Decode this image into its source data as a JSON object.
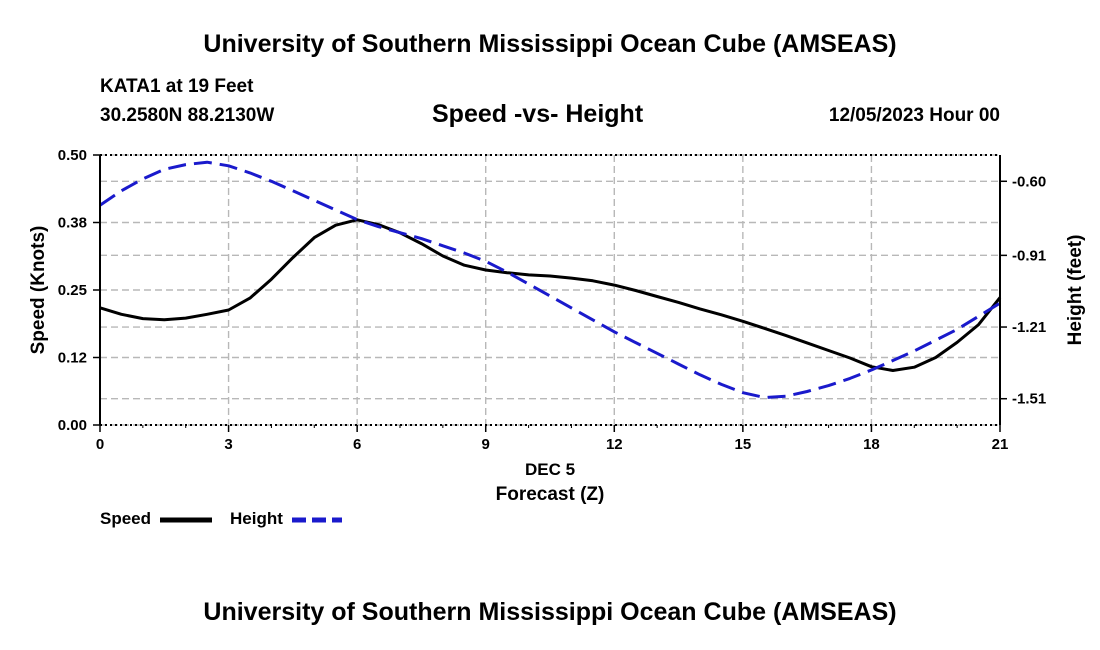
{
  "header": {
    "title": "University of Southern Mississippi Ocean Cube (AMSEAS)",
    "station": "KATA1 at 19 Feet",
    "coords": "30.2580N  88.2130W",
    "subtitle": "Speed -vs- Height",
    "datetime": "12/05/2023 Hour 00"
  },
  "footer": {
    "title": "University of Southern Mississippi Ocean Cube (AMSEAS)"
  },
  "chart_data": {
    "type": "line",
    "title": "Speed -vs- Height",
    "xlabel": "Forecast (Z)",
    "xlabel_date": "DEC 5",
    "ylabel": "Speed (Knots)",
    "y2label": "Height (feet)",
    "xlim": [
      0,
      21
    ],
    "ylim": [
      0,
      0.5
    ],
    "y2lim": [
      -1.62,
      -0.49
    ],
    "x_ticks": [
      0,
      3,
      6,
      9,
      12,
      15,
      18,
      21
    ],
    "x_tick_labels": [
      "0",
      "3",
      "6",
      "9",
      "12",
      "15",
      "18",
      "21"
    ],
    "y_ticks": [
      0,
      0.125,
      0.25,
      0.375,
      0.5
    ],
    "y_tick_labels": [
      "0.00",
      "0.12",
      "0.25",
      "0.38",
      "0.50"
    ],
    "y2_ticks": [
      -1.51,
      -1.21,
      -0.91,
      -0.6
    ],
    "y2_tick_labels": [
      "-1.51",
      "-1.21",
      "-0.91",
      "-0.60"
    ],
    "grid": true,
    "legend_position": "bottom-left",
    "series": [
      {
        "name": "Speed",
        "axis": "left",
        "color": "#000000",
        "dash": "solid",
        "x": [
          0,
          0.5,
          1,
          1.5,
          2,
          2.5,
          3,
          3.5,
          4,
          4.5,
          5,
          5.5,
          6,
          6.5,
          7,
          7.5,
          8,
          8.5,
          9,
          9.5,
          10,
          10.5,
          11,
          11.5,
          12,
          12.5,
          13,
          13.5,
          14,
          14.5,
          15,
          15.5,
          16,
          16.5,
          17,
          17.5,
          18,
          18.5,
          19,
          19.5,
          20,
          20.5,
          21
        ],
        "values": [
          0.217,
          0.205,
          0.197,
          0.195,
          0.198,
          0.205,
          0.213,
          0.235,
          0.27,
          0.31,
          0.347,
          0.37,
          0.38,
          0.371,
          0.356,
          0.336,
          0.313,
          0.296,
          0.287,
          0.282,
          0.278,
          0.276,
          0.272,
          0.267,
          0.259,
          0.249,
          0.238,
          0.227,
          0.215,
          0.204,
          0.192,
          0.179,
          0.166,
          0.152,
          0.138,
          0.124,
          0.108,
          0.101,
          0.107,
          0.125,
          0.153,
          0.186,
          0.236
        ]
      },
      {
        "name": "Height",
        "axis": "right",
        "color": "#1a1acc",
        "dash": "dashed",
        "x": [
          0,
          0.5,
          1,
          1.5,
          2,
          2.5,
          3,
          3.5,
          4,
          4.5,
          5,
          5.5,
          6,
          6.5,
          7,
          7.5,
          8,
          8.5,
          9,
          9.5,
          10,
          10.5,
          11,
          11.5,
          12,
          12.5,
          13,
          13.5,
          14,
          14.5,
          15,
          15.5,
          16,
          16.5,
          17,
          17.5,
          18,
          18.5,
          19,
          19.5,
          20,
          20.5,
          21
        ],
        "values": [
          -0.7,
          -0.64,
          -0.59,
          -0.55,
          -0.53,
          -0.52,
          -0.535,
          -0.565,
          -0.6,
          -0.64,
          -0.68,
          -0.72,
          -0.76,
          -0.79,
          -0.815,
          -0.84,
          -0.87,
          -0.9,
          -0.935,
          -0.98,
          -1.03,
          -1.08,
          -1.13,
          -1.18,
          -1.23,
          -1.275,
          -1.32,
          -1.365,
          -1.41,
          -1.45,
          -1.485,
          -1.505,
          -1.5,
          -1.48,
          -1.455,
          -1.425,
          -1.39,
          -1.35,
          -1.31,
          -1.265,
          -1.22,
          -1.165,
          -1.11
        ]
      }
    ]
  }
}
